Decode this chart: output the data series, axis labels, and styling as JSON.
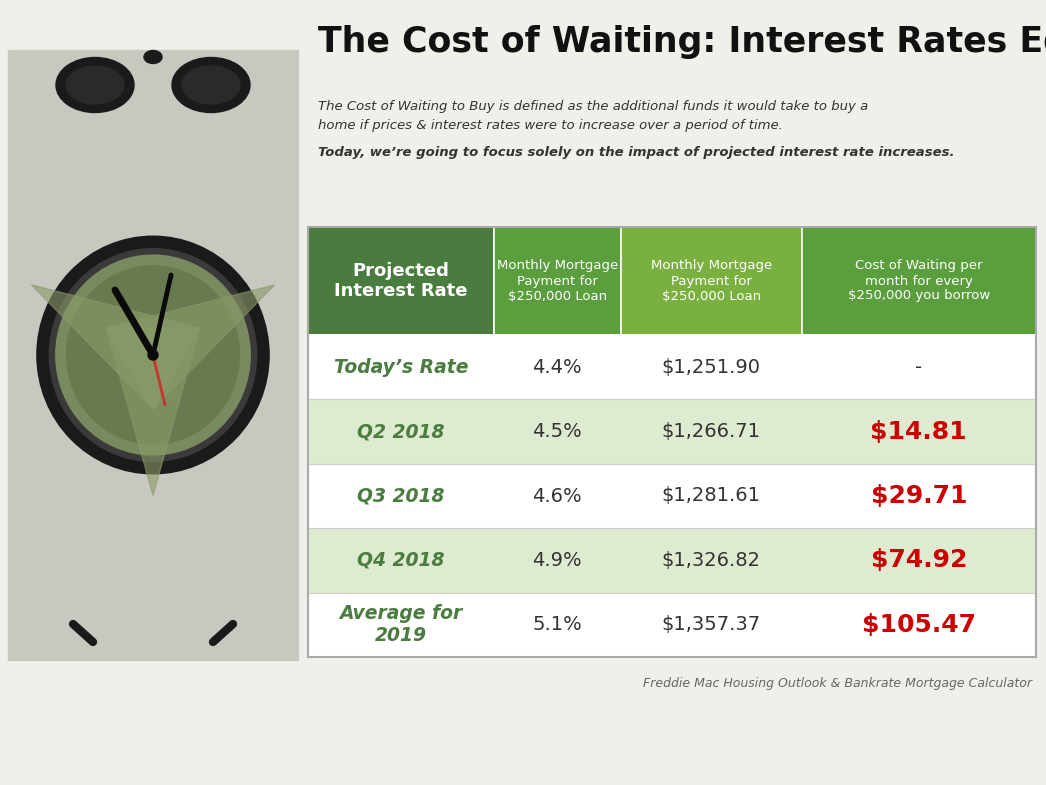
{
  "title": "The Cost of Waiting: Interest Rates Edition",
  "subtitle_line1": "The Cost of Waiting to Buy is defined as the additional funds it would take to buy a",
  "subtitle_line2": "home if prices & interest rates were to increase over a period of time. ",
  "subtitle_bold": "Today, we’re going to focus solely on the impact of projected interest rate increases.",
  "col_headers_0": "Projected\nInterest Rate",
  "col_headers_1": "Monthly Mortgage\nPayment for\n$250,000 Loan",
  "col_headers_2": "Cost of Waiting per\nmonth for every\n$250,000 you borrow",
  "rows": [
    {
      "label": "Today’s Rate",
      "rate": "4.4%",
      "payment": "$1,251.90",
      "cost": "-",
      "label_color": "#4a7c3f",
      "cost_color": "#333333",
      "cost_bold": false
    },
    {
      "label": "Q2 2018",
      "rate": "4.5%",
      "payment": "$1,266.71",
      "cost": "$14.81",
      "label_color": "#4a7c3f",
      "cost_color": "#cc0000",
      "cost_bold": true
    },
    {
      "label": "Q3 2018",
      "rate": "4.6%",
      "payment": "$1,281.61",
      "cost": "$29.71",
      "label_color": "#4a7c3f",
      "cost_color": "#cc0000",
      "cost_bold": true
    },
    {
      "label": "Q4 2018",
      "rate": "4.9%",
      "payment": "$1,326.82",
      "cost": "$74.92",
      "label_color": "#4a7c3f",
      "cost_color": "#cc0000",
      "cost_bold": true
    },
    {
      "label": "Average for\n2019",
      "rate": "5.1%",
      "payment": "$1,357.37",
      "cost": "$105.47",
      "label_color": "#4a7c3f",
      "cost_color": "#cc0000",
      "cost_bold": true
    }
  ],
  "header_bg_colors": [
    "#4a7c3f",
    "#5a9e3e",
    "#7ab040",
    "#5a9e3e"
  ],
  "row_bg_colors": [
    "#ffffff",
    "#deebd0",
    "#ffffff",
    "#deebd0",
    "#ffffff"
  ],
  "footer": "Freddie Mac Housing Outlook & Bankrate Mortgage Calculator",
  "bg_color": "#f0f0eb",
  "clock_bg": "#c8c8c0",
  "clock_outer": "#1a1a1a",
  "clock_face": "#7a8a60",
  "clock_inner": "#6a7a50"
}
